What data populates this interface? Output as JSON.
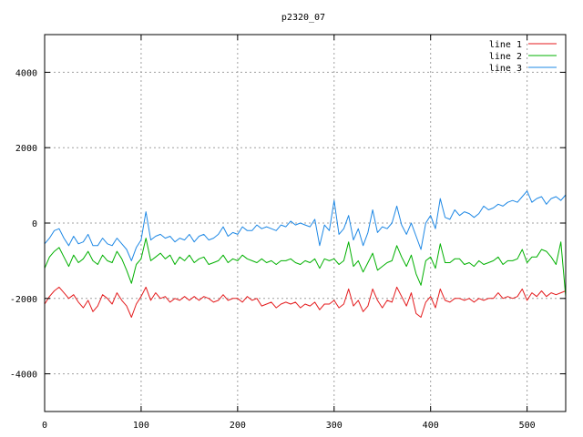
{
  "chart_data": {
    "type": "line",
    "title": "p2320_07",
    "xlabel": "",
    "ylabel": "",
    "xlim": [
      0,
      540
    ],
    "ylim": [
      -5000,
      5000
    ],
    "xticks": [
      0,
      100,
      200,
      300,
      400,
      500
    ],
    "yticks": [
      -4000,
      -2000,
      0,
      2000,
      4000
    ],
    "grid": true,
    "legend_position": "top-right",
    "series": [
      {
        "name": "line 1",
        "color": "#e41a1c",
        "x": [
          0,
          5,
          10,
          15,
          20,
          25,
          30,
          35,
          40,
          45,
          50,
          55,
          60,
          65,
          70,
          75,
          80,
          85,
          90,
          95,
          100,
          105,
          110,
          115,
          120,
          125,
          130,
          135,
          140,
          145,
          150,
          155,
          160,
          165,
          170,
          175,
          180,
          185,
          190,
          195,
          200,
          205,
          210,
          215,
          220,
          225,
          230,
          235,
          240,
          245,
          250,
          255,
          260,
          265,
          270,
          275,
          280,
          285,
          290,
          295,
          300,
          305,
          310,
          315,
          320,
          325,
          330,
          335,
          340,
          345,
          350,
          355,
          360,
          365,
          370,
          375,
          380,
          385,
          390,
          395,
          400,
          405,
          410,
          415,
          420,
          425,
          430,
          435,
          440,
          445,
          450,
          455,
          460,
          465,
          470,
          475,
          480,
          485,
          490,
          495,
          500,
          505,
          510,
          515,
          520,
          525,
          530,
          535,
          540
        ],
        "values": [
          -2150,
          -1950,
          -1800,
          -1700,
          -1850,
          -2000,
          -1900,
          -2100,
          -2250,
          -2050,
          -2350,
          -2200,
          -1900,
          -2000,
          -2150,
          -1850,
          -2050,
          -2200,
          -2500,
          -2150,
          -1950,
          -1700,
          -2050,
          -1850,
          -2000,
          -1950,
          -2100,
          -2000,
          -2050,
          -1950,
          -2050,
          -1950,
          -2050,
          -1950,
          -2000,
          -2100,
          -2050,
          -1900,
          -2050,
          -2000,
          -2000,
          -2100,
          -1950,
          -2050,
          -2000,
          -2200,
          -2150,
          -2100,
          -2250,
          -2150,
          -2100,
          -2150,
          -2100,
          -2250,
          -2150,
          -2200,
          -2100,
          -2300,
          -2150,
          -2150,
          -2050,
          -2250,
          -2150,
          -1750,
          -2200,
          -2050,
          -2350,
          -2200,
          -1750,
          -2050,
          -2250,
          -2050,
          -2100,
          -1700,
          -1950,
          -2200,
          -1850,
          -2400,
          -2500,
          -2100,
          -1950,
          -2250,
          -1750,
          -2050,
          -2100,
          -2000,
          -2000,
          -2050,
          -2000,
          -2100,
          -2000,
          -2050,
          -2000,
          -2000,
          -1850,
          -2000,
          -1950,
          -2000,
          -1950,
          -1750,
          -2050,
          -1850,
          -1950,
          -1800,
          -1950,
          -1850,
          -1900,
          -1850,
          -1800
        ]
      },
      {
        "name": "line 2",
        "color": "#00b000",
        "x": [
          0,
          5,
          10,
          15,
          20,
          25,
          30,
          35,
          40,
          45,
          50,
          55,
          60,
          65,
          70,
          75,
          80,
          85,
          90,
          95,
          100,
          105,
          110,
          115,
          120,
          125,
          130,
          135,
          140,
          145,
          150,
          155,
          160,
          165,
          170,
          175,
          180,
          185,
          190,
          195,
          200,
          205,
          210,
          215,
          220,
          225,
          230,
          235,
          240,
          245,
          250,
          255,
          260,
          265,
          270,
          275,
          280,
          285,
          290,
          295,
          300,
          305,
          310,
          315,
          320,
          325,
          330,
          335,
          340,
          345,
          350,
          355,
          360,
          365,
          370,
          375,
          380,
          385,
          390,
          395,
          400,
          405,
          410,
          415,
          420,
          425,
          430,
          435,
          440,
          445,
          450,
          455,
          460,
          465,
          470,
          475,
          480,
          485,
          490,
          495,
          500,
          505,
          510,
          515,
          520,
          525,
          530,
          535,
          540
        ],
        "values": [
          -1200,
          -900,
          -750,
          -650,
          -900,
          -1150,
          -850,
          -1050,
          -950,
          -750,
          -1000,
          -1100,
          -850,
          -1000,
          -1050,
          -750,
          -950,
          -1250,
          -1600,
          -1100,
          -950,
          -400,
          -1000,
          -900,
          -800,
          -950,
          -850,
          -1100,
          -900,
          -1000,
          -850,
          -1050,
          -950,
          -900,
          -1100,
          -1050,
          -1000,
          -850,
          -1050,
          -950,
          -1000,
          -850,
          -950,
          -1000,
          -1050,
          -950,
          -1050,
          -1000,
          -1100,
          -1000,
          -1000,
          -950,
          -1050,
          -1100,
          -1000,
          -1050,
          -950,
          -1200,
          -950,
          -1000,
          -950,
          -1100,
          -1000,
          -500,
          -1150,
          -1000,
          -1300,
          -1050,
          -800,
          -1250,
          -1150,
          -1050,
          -1000,
          -600,
          -900,
          -1150,
          -850,
          -1350,
          -1650,
          -1000,
          -900,
          -1200,
          -550,
          -1050,
          -1050,
          -950,
          -950,
          -1100,
          -1050,
          -1150,
          -1000,
          -1100,
          -1050,
          -1000,
          -900,
          -1100,
          -1000,
          -1000,
          -950,
          -700,
          -1050,
          -900,
          -900,
          -700,
          -750,
          -900,
          -1100,
          -500,
          -1950
        ]
      },
      {
        "name": "line 3",
        "color": "#1e88e5",
        "x": [
          0,
          5,
          10,
          15,
          20,
          25,
          30,
          35,
          40,
          45,
          50,
          55,
          60,
          65,
          70,
          75,
          80,
          85,
          90,
          95,
          100,
          105,
          110,
          115,
          120,
          125,
          130,
          135,
          140,
          145,
          150,
          155,
          160,
          165,
          170,
          175,
          180,
          185,
          190,
          195,
          200,
          205,
          210,
          215,
          220,
          225,
          230,
          235,
          240,
          245,
          250,
          255,
          260,
          265,
          270,
          275,
          280,
          285,
          290,
          295,
          300,
          305,
          310,
          315,
          320,
          325,
          330,
          335,
          340,
          345,
          350,
          355,
          360,
          365,
          370,
          375,
          380,
          385,
          390,
          395,
          400,
          405,
          410,
          415,
          420,
          425,
          430,
          435,
          440,
          445,
          450,
          455,
          460,
          465,
          470,
          475,
          480,
          485,
          490,
          495,
          500,
          505,
          510,
          515,
          520,
          525,
          530,
          535,
          540
        ],
        "values": [
          -550,
          -400,
          -200,
          -150,
          -400,
          -600,
          -350,
          -550,
          -500,
          -300,
          -600,
          -600,
          -400,
          -550,
          -600,
          -400,
          -550,
          -700,
          -1000,
          -650,
          -450,
          300,
          -450,
          -350,
          -300,
          -400,
          -350,
          -500,
          -400,
          -450,
          -300,
          -500,
          -350,
          -300,
          -450,
          -400,
          -300,
          -100,
          -350,
          -250,
          -300,
          -100,
          -200,
          -200,
          -50,
          -150,
          -100,
          -150,
          -200,
          -50,
          -100,
          50,
          -50,
          0,
          -50,
          -100,
          100,
          -600,
          -50,
          -200,
          600,
          -300,
          -150,
          200,
          -450,
          -150,
          -600,
          -250,
          350,
          -250,
          -100,
          -150,
          0,
          450,
          -50,
          -300,
          0,
          -350,
          -700,
          0,
          200,
          -150,
          650,
          150,
          100,
          350,
          200,
          300,
          250,
          150,
          250,
          450,
          350,
          400,
          500,
          450,
          550,
          600,
          550,
          700,
          850,
          550,
          650,
          700,
          500,
          650,
          700,
          600,
          750
        ]
      }
    ]
  }
}
